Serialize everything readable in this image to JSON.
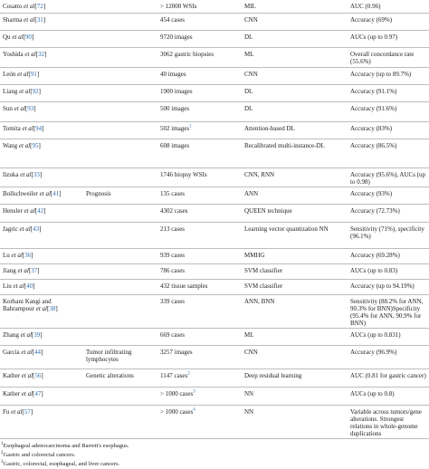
{
  "rows": [
    {
      "author": "Cosatto",
      "ref": "72",
      "task": "",
      "sample": "> 12000 WSIs",
      "note": "",
      "method": "MIL",
      "result": "AUC (0.96)",
      "h": 14
    },
    {
      "author": "Sharma",
      "ref": "31",
      "task": "",
      "sample": "454 cases",
      "note": "",
      "method": "CNN",
      "result": "Accuracy (69%)",
      "h": 19
    },
    {
      "author": "Qu",
      "ref": "90",
      "task": "",
      "sample": "9720 images",
      "note": "",
      "method": "DL",
      "result": "AUCs (up to 0.97)",
      "h": 19
    },
    {
      "author": "Yoshida",
      "ref": "32",
      "task": "",
      "sample": "3062 gastric biopsies",
      "note": "",
      "method": "ML",
      "result": "Overall concordance rate (55.6%)",
      "h": 22
    },
    {
      "author": "León",
      "ref": "91",
      "task": "",
      "sample": "40 images",
      "note": "",
      "method": "CNN",
      "result": "Accuracy (up to 89.7%)",
      "h": 19
    },
    {
      "author": "Liang",
      "ref": "92",
      "task": "",
      "sample": "1900 images",
      "note": "",
      "method": "DL",
      "result": "Accuracy (91.1%)",
      "h": 19
    },
    {
      "author": "Sun",
      "ref": "93",
      "task": "",
      "sample": "500 images",
      "note": "",
      "method": "DL",
      "result": "Accuracy (91.6%)",
      "h": 22
    },
    {
      "author": "Tomita",
      "ref": "94",
      "task": "",
      "sample": "502 images",
      "note": "1",
      "method": "Attention-based DL",
      "result": "Accuracy (83%)",
      "h": 19
    },
    {
      "author": "Wang",
      "ref": "95",
      "task": "",
      "sample": "608 images",
      "note": "",
      "method": "Recalibrated multi-instance-DL",
      "result": "Accuracy (86.5%)",
      "h": 32
    },
    {
      "author": "Iizuka",
      "ref": "33",
      "task": "",
      "sample": "1746 biopsy WSIs",
      "note": "",
      "method": "CNN, RNN",
      "result": "Accuracy (95.6%), AUCs (up to 0.98)",
      "h": 21
    },
    {
      "author": "Bollschweiler",
      "ref": "41",
      "task": "Prognosis",
      "sample": "135 cases",
      "note": "",
      "method": "ANN",
      "result": "Accuracy (93%)",
      "h": 19
    },
    {
      "author": "Hensler",
      "ref": "42",
      "task": "",
      "sample": "4302 cases",
      "note": "",
      "method": "QUEEN technique",
      "result": "Accuracy (72.73%)",
      "h": 20
    },
    {
      "author": "Jagric",
      "ref": "43",
      "task": "",
      "sample": "213 cases",
      "note": "",
      "method": "Learning vector quantization NN",
      "result": "Sensitivity (71%), specificity (96.1%)",
      "h": 29
    },
    {
      "author": "Lu",
      "ref": "36",
      "task": "",
      "sample": "939 cases",
      "note": "",
      "method": "MMHG",
      "result": "Accuracy (69.28%)",
      "h": 17
    },
    {
      "author": "Jiang",
      "ref": "37",
      "task": "",
      "sample": "786 cases",
      "note": "",
      "method": "SVM classifier",
      "result": "AUCs (up to 0.83)",
      "h": 17
    },
    {
      "author": "Liu",
      "ref": "40",
      "task": "",
      "sample": "432 tissue samples",
      "note": "",
      "method": "SVM classifier",
      "result": "Accuracy (up to 94.19%)",
      "h": 17
    },
    {
      "author": "Korhani Kangi and Bahrampour",
      "ref": "38",
      "task": "",
      "sample": "339 cases",
      "note": "",
      "method": "ANN, BNN",
      "result": "Sensitivity (88.2% for ANN, 90.3% for BNN)Specificity (95.4% for ANN, 90.9% for BNN)",
      "h": 37
    },
    {
      "author": "Zhang",
      "ref": "39",
      "task": "",
      "sample": "669 cases",
      "note": "",
      "method": "ML",
      "result": "AUCs (up to 0.831)",
      "h": 19
    },
    {
      "author": "Garcia",
      "ref": "44",
      "task": "Tumor infiltrating lymphocytes",
      "sample": "3257 images",
      "note": "",
      "method": "CNN",
      "result": "Accuracy (96.9%)",
      "h": 26
    },
    {
      "author": "Kather",
      "ref": "56",
      "task": "Genetic alterations",
      "sample": "1147 cases",
      "note": "2",
      "method": "Deep residual learning",
      "result": "AUC (0.81 for gastric cancer)",
      "h": 20
    },
    {
      "author": "Kather",
      "ref": "47",
      "task": "",
      "sample": "> 1000 cases",
      "note": "3",
      "method": "NN",
      "result": "AUCs (up to 0.8)",
      "h": 20
    },
    {
      "author": "Fu",
      "ref": "57",
      "task": "",
      "sample": "> 1000 cases",
      "note": "4",
      "method": "NN",
      "result": "Variable across tumors/gene alterations. Strongest relations in whole-genome duplications",
      "h": 37
    }
  ],
  "footnotes": [
    {
      "mark": "1",
      "text": "Esophageal adenocarcinoma and Barrett's esophagus."
    },
    {
      "mark": "2",
      "text": "Gastric and colorectal cancers."
    },
    {
      "mark": "3",
      "text": "Gastric, colorectal, esophageal, and liver cancers."
    }
  ]
}
